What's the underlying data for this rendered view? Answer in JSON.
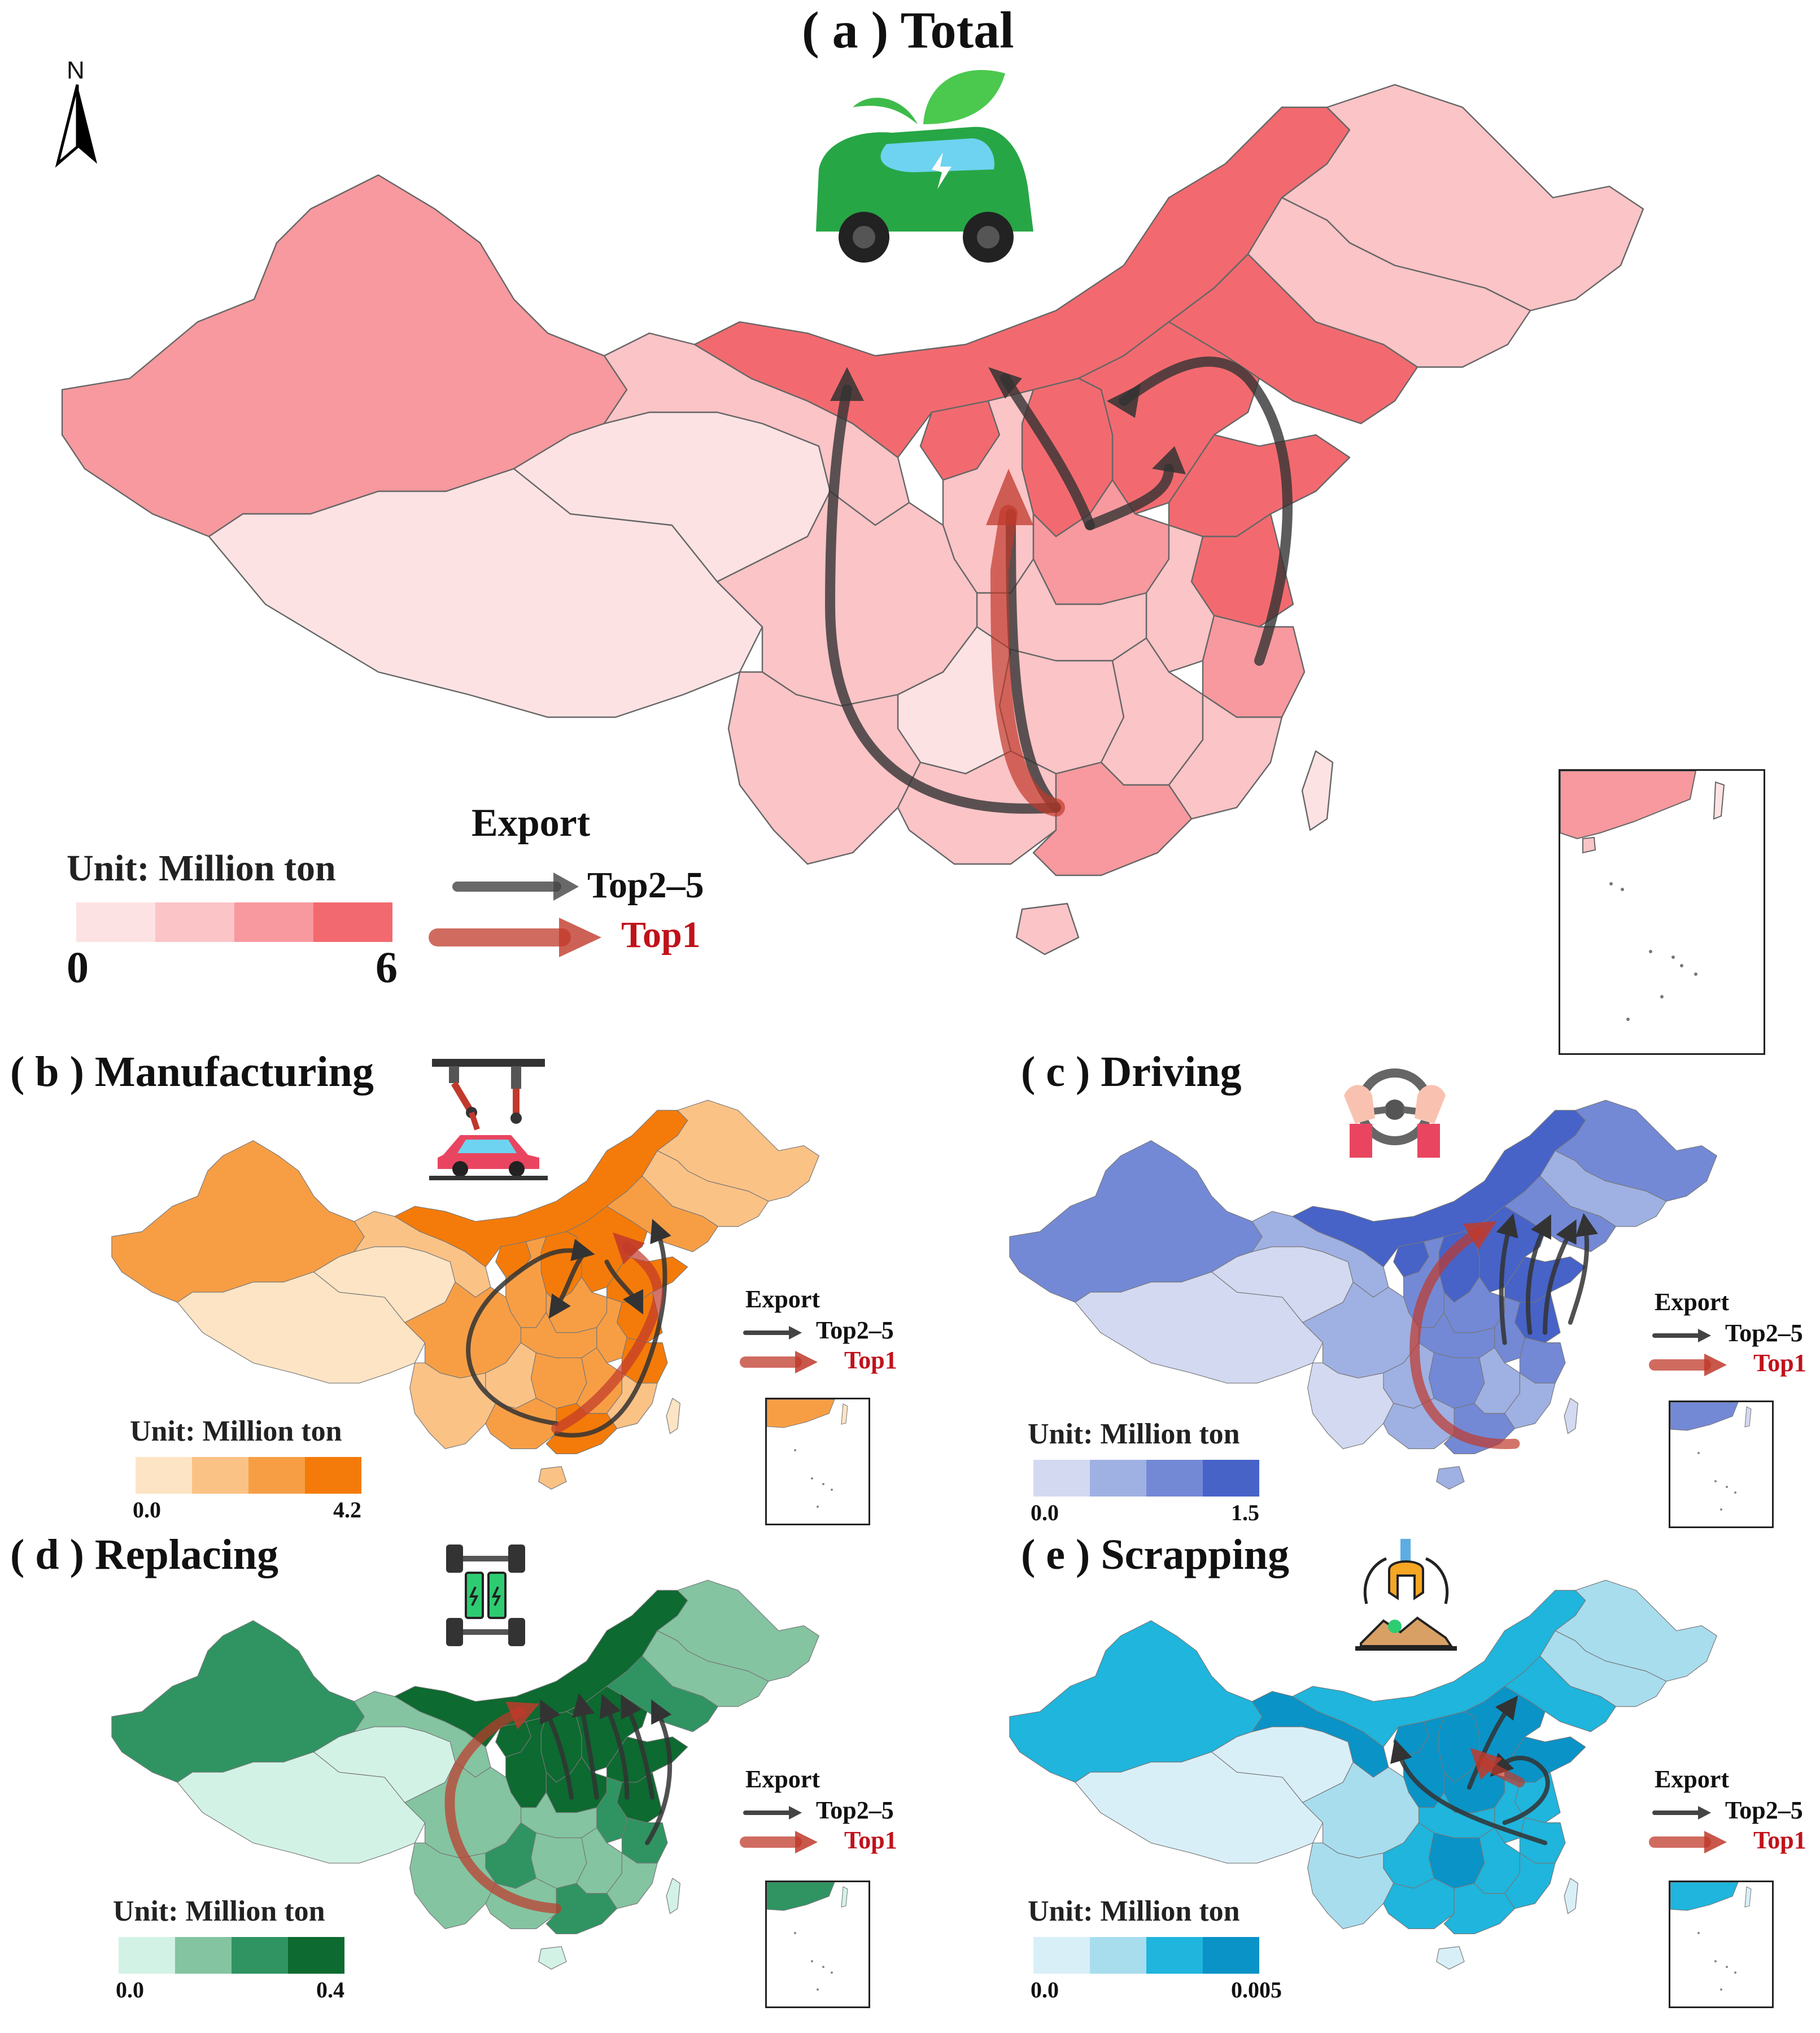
{
  "panels": {
    "a": {
      "title": "( a ) Total",
      "unit_label": "Unit: Million ton",
      "range_min": "0",
      "range_max": "6",
      "colors": [
        "#fde2e3",
        "#fbc4c7",
        "#f7999e",
        "#f26a6f"
      ],
      "icon": "electric-car-leaf-icon",
      "arrow_color": "#444444",
      "top1_color": "#c0392b"
    },
    "b": {
      "title": "( b ) Manufacturing",
      "unit_label": "Unit: Million ton",
      "range_min": "0.0",
      "range_max": "4.2",
      "colors": [
        "#fde4c4",
        "#fbc286",
        "#f79e45",
        "#f47b09"
      ],
      "icon": "robot-arm-car-assembly-icon"
    },
    "c": {
      "title": "( c ) Driving",
      "unit_label": "Unit: Million ton",
      "range_min": "0.0",
      "range_max": "1.5",
      "colors": [
        "#d2d9f1",
        "#9fb0e3",
        "#7389d6",
        "#4763c8"
      ],
      "icon": "hands-steering-wheel-icon"
    },
    "d": {
      "title": "( d ) Replacing",
      "unit_label": "Unit: Million ton",
      "range_min": "0.0",
      "range_max": "0.4",
      "colors": [
        "#d3f2e6",
        "#84c4a1",
        "#2f9462",
        "#0d6a30"
      ],
      "icon": "battery-chassis-icon"
    },
    "e": {
      "title": "( e ) Scrapping",
      "unit_label": "Unit: Million ton",
      "range_min": "0.0",
      "range_max": "0.005",
      "colors": [
        "#d9eff8",
        "#a8ddee",
        "#1fb5dd",
        "#0a93c7"
      ],
      "icon": "claw-scrap-recycling-icon"
    }
  },
  "legend": {
    "export_label": "Export",
    "top2_5_label": "Top2–5",
    "top1_label": "Top1"
  },
  "north_label": "N"
}
